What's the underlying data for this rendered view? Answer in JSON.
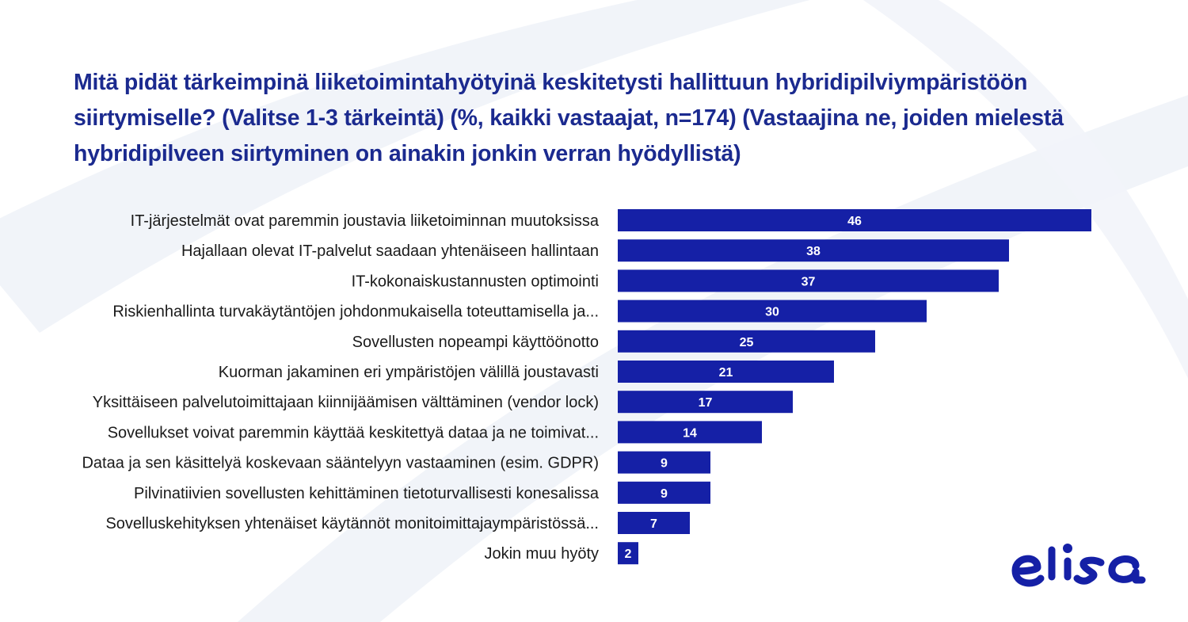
{
  "title_lines": [
    "Mitä pidät tärkeimpinä liiketoimintahyötyinä keskitetysti hallittuun hybridipilviympäristöön",
    "siirtymiselle? (Valitse 1-3 tärkeintä) (%, kaikki vastaajat, n=174) (Vastaajina ne, joiden mielestä",
    "hybridipilveen siirtyminen on ainakin jonkin verran hyödyllistä)"
  ],
  "colors": {
    "bar": "#1520a6",
    "title": "#1b2a8f",
    "background_swoosh": "#eef1f8",
    "logo": "#1520a6"
  },
  "logo_icon": "elisa-logo",
  "chart_data": {
    "type": "bar",
    "orientation": "horizontal",
    "categories": [
      "IT-järjestelmät ovat paremmin joustavia liiketoiminnan muutoksissa",
      "Hajallaan olevat IT-palvelut saadaan yhtenäiseen hallintaan",
      "IT-kokonaiskustannusten optimointi",
      "Riskienhallinta turvakäytäntöjen johdonmukaisella toteuttamisella ja...",
      "Sovellusten nopeampi käyttöönotto",
      "Kuorman jakaminen eri ympäristöjen välillä joustavasti",
      "Yksittäiseen palvelutoimittajaan kiinnijäämisen välttäminen (vendor lock)",
      "Sovellukset voivat paremmin käyttää keskitettyä dataa ja ne toimivat...",
      "Dataa ja sen käsittelyä koskevaan sääntelyyn vastaaminen (esim. GDPR)",
      "Pilvinatiivien sovellusten kehittäminen tietoturvallisesti konesalissa",
      "Sovelluskehityksen yhtenäiset käytännöt monitoimittajaympäristössä...",
      "Jokin muu hyöty"
    ],
    "values": [
      46,
      38,
      37,
      30,
      25,
      21,
      17,
      14,
      9,
      9,
      7,
      2
    ],
    "data_labels": [
      "46",
      "38",
      "37",
      "30",
      "25",
      "21",
      "17",
      "14",
      "9",
      "9",
      "7",
      "2"
    ],
    "xlim": [
      0,
      46
    ],
    "grid": false,
    "legend": "none"
  }
}
